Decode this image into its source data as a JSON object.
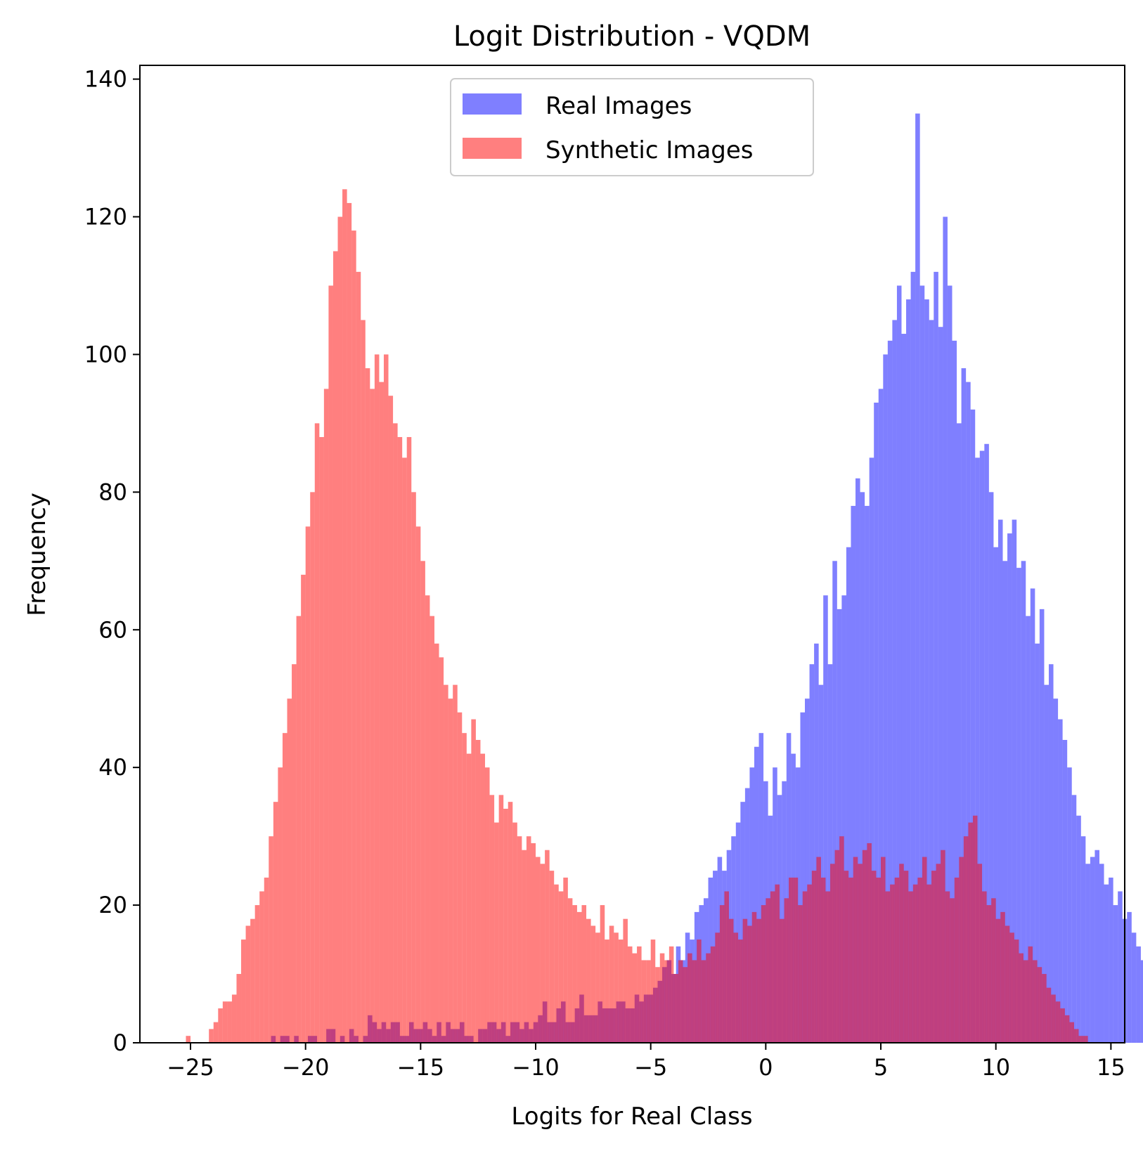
{
  "chart_data": {
    "type": "bar",
    "subtype": "overlapping histogram",
    "title": "Logit Distribution - VQDM",
    "xlabel": "Logits for Real Class",
    "ylabel": "Frequency",
    "xlim": [
      -27.2,
      15.6
    ],
    "ylim": [
      0,
      142
    ],
    "xticks": [
      -25,
      -20,
      -15,
      -10,
      -5,
      0,
      5,
      10,
      15
    ],
    "xtick_labels": [
      "−25",
      "−20",
      "−15",
      "−10",
      "−5",
      "0",
      "5",
      "10",
      "15"
    ],
    "yticks": [
      0,
      20,
      40,
      60,
      80,
      100,
      120,
      140
    ],
    "ytick_labels": [
      "0",
      "20",
      "40",
      "60",
      "80",
      "100",
      "120",
      "140"
    ],
    "grid": false,
    "legend_position": "upper center",
    "series": [
      {
        "name": "Real Images",
        "color": "#0000ff",
        "opacity": 0.5,
        "bin_start": -21.5,
        "bin_width": 0.2,
        "counts": [
          1,
          0,
          1,
          1,
          0,
          1,
          0,
          0,
          1,
          1,
          0,
          0,
          2,
          2,
          0,
          1,
          0,
          2,
          1,
          0,
          1,
          4,
          3,
          2,
          3,
          2,
          3,
          3,
          1,
          1,
          3,
          2,
          2,
          3,
          2,
          1,
          3,
          1,
          3,
          2,
          2,
          3,
          1,
          1,
          0,
          2,
          2,
          3,
          3,
          2,
          3,
          1,
          3,
          3,
          2,
          3,
          2,
          3,
          4,
          6,
          3,
          3,
          5,
          6,
          3,
          3,
          5,
          7,
          4,
          4,
          4,
          6,
          5,
          5,
          5,
          6,
          6,
          5,
          5,
          7,
          6,
          7,
          7,
          8,
          9,
          11,
          12,
          10,
          14,
          12,
          16,
          15,
          19,
          20,
          21,
          24,
          25,
          27,
          25,
          28,
          30,
          32,
          35,
          37,
          40,
          43,
          45,
          38,
          33,
          40,
          36,
          38,
          45,
          42,
          40,
          48,
          50,
          55,
          58,
          52,
          65,
          55,
          70,
          63,
          65,
          72,
          78,
          82,
          80,
          78,
          85,
          93,
          95,
          100,
          102,
          105,
          110,
          103,
          108,
          112,
          135,
          110,
          108,
          105,
          112,
          104,
          120,
          110,
          102,
          90,
          98,
          96,
          92,
          85,
          86,
          87,
          80,
          72,
          76,
          70,
          74,
          76,
          69,
          70,
          62,
          66,
          58,
          63,
          52,
          55,
          50,
          47,
          44,
          40,
          36,
          33,
          30,
          26,
          27,
          28,
          26,
          23,
          24,
          20,
          22,
          18,
          19,
          16,
          14,
          12,
          10,
          11,
          9,
          8,
          7,
          6,
          5,
          4,
          3,
          3,
          2,
          1,
          1,
          1,
          1,
          0,
          0,
          1,
          0,
          0,
          0,
          0,
          0,
          0,
          1
        ]
      },
      {
        "name": "Synthetic Images",
        "color": "#ff0000",
        "opacity": 0.5,
        "bin_start": -25.2,
        "bin_width": 0.2,
        "counts": [
          1,
          0,
          0,
          0,
          0,
          2,
          3,
          5,
          6,
          6,
          7,
          10,
          15,
          17,
          18,
          20,
          22,
          24,
          30,
          35,
          40,
          45,
          50,
          55,
          62,
          68,
          75,
          80,
          90,
          88,
          95,
          110,
          115,
          120,
          124,
          122,
          118,
          112,
          105,
          98,
          95,
          100,
          96,
          100,
          94,
          90,
          88,
          85,
          88,
          80,
          75,
          70,
          65,
          62,
          58,
          56,
          52,
          50,
          52,
          48,
          45,
          42,
          47,
          44,
          42,
          40,
          36,
          32,
          36,
          34,
          35,
          32,
          30,
          28,
          30,
          29,
          27,
          26,
          28,
          25,
          23,
          22,
          24,
          21,
          20,
          19,
          20,
          18,
          17,
          16,
          20,
          15,
          17,
          16,
          15,
          18,
          14,
          13,
          14,
          12,
          12,
          15,
          11,
          13,
          12,
          14,
          10,
          12,
          11,
          13,
          12,
          15,
          12,
          13,
          14,
          16,
          20,
          22,
          18,
          16,
          15,
          18,
          17,
          19,
          18,
          20,
          21,
          22,
          23,
          18,
          21,
          24,
          24,
          20,
          22,
          23,
          25,
          27,
          24,
          22,
          26,
          28,
          30,
          25,
          24,
          27,
          26,
          28,
          29,
          25,
          24,
          27,
          22,
          23,
          24,
          26,
          25,
          22,
          23,
          24,
          27,
          23,
          25,
          26,
          28,
          22,
          21,
          24,
          27,
          30,
          32,
          33,
          26,
          22,
          20,
          21,
          18,
          19,
          17,
          16,
          15,
          13,
          12,
          14,
          12,
          11,
          10,
          8,
          7,
          6,
          5,
          4,
          3,
          2,
          1,
          1,
          0,
          0
        ]
      }
    ]
  }
}
